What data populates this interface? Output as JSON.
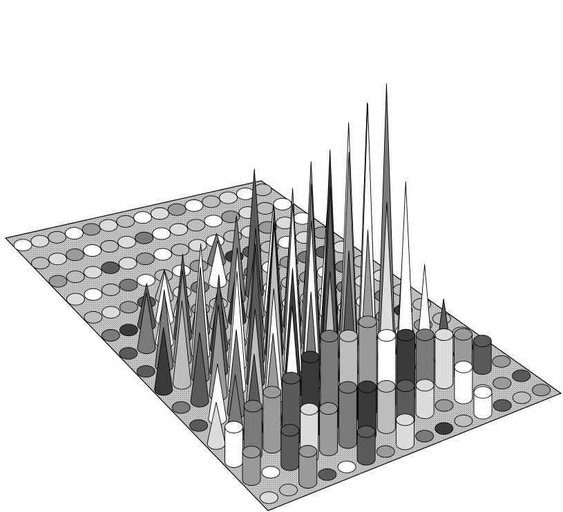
{
  "chart_data": {
    "type": "3d-glyph-grid",
    "title": "",
    "xlabel": "",
    "ylabel": "",
    "zlabel": "",
    "grid_size": [
      15,
      15
    ],
    "glyph_shapes": [
      "cone",
      "cylinder",
      "disc"
    ],
    "shade_levels": [
      "#ffffff",
      "#dcdcdc",
      "#bdbdbd",
      "#9a9a9a",
      "#7a7a7a",
      "#5a5a5a",
      "#3a3a3a"
    ],
    "rows": [
      {
        "c": [
          0,
          1,
          2,
          0,
          3,
          1,
          2,
          0,
          1,
          3,
          0,
          2,
          1,
          0,
          2
        ],
        "h": [
          0,
          0,
          0,
          0,
          0,
          0,
          0,
          0,
          0,
          0,
          0,
          0,
          0,
          0,
          0
        ],
        "s": [
          0,
          0,
          0,
          0,
          0,
          0,
          0,
          0,
          0,
          0,
          0,
          0,
          0,
          0,
          0
        ]
      },
      {
        "c": [
          2,
          1,
          3,
          0,
          2,
          1,
          4,
          0,
          1,
          2,
          0,
          3,
          1,
          2,
          0
        ],
        "h": [
          0,
          0,
          0,
          0,
          0,
          0,
          0,
          0,
          0,
          0,
          0,
          0,
          0,
          0,
          0
        ],
        "s": [
          0,
          0,
          0,
          0,
          0,
          0,
          0,
          0,
          0,
          0,
          0,
          0,
          0,
          0,
          0
        ]
      },
      {
        "c": [
          3,
          2,
          1,
          5,
          1,
          3,
          0,
          2,
          1,
          0,
          2,
          1,
          3,
          1,
          0
        ],
        "h": [
          0,
          0,
          0,
          0,
          0,
          0,
          0,
          0,
          0,
          0,
          0,
          0,
          0,
          0,
          0
        ],
        "s": [
          0,
          0,
          0,
          0,
          0,
          0,
          0,
          0,
          0,
          0,
          0,
          0,
          0,
          0,
          0
        ]
      },
      {
        "c": [
          1,
          0,
          2,
          4,
          0,
          2,
          0,
          3,
          4,
          6,
          5,
          2,
          0,
          1,
          3
        ],
        "h": [
          0,
          0,
          0,
          0,
          0,
          0,
          0,
          0,
          40,
          0,
          0,
          0,
          0,
          0,
          0
        ],
        "s": [
          0,
          0,
          0,
          0,
          0,
          0,
          0,
          0,
          1,
          0,
          0,
          0,
          0,
          0,
          0
        ]
      },
      {
        "c": [
          2,
          1,
          3,
          5,
          2,
          1,
          4,
          0,
          2,
          4,
          0,
          3,
          4,
          5,
          1
        ],
        "h": [
          0,
          0,
          0,
          0,
          40,
          0,
          0,
          60,
          0,
          0,
          0,
          0,
          0,
          0,
          0
        ],
        "s": [
          0,
          0,
          0,
          0,
          1,
          0,
          0,
          1,
          0,
          0,
          0,
          0,
          0,
          0,
          0
        ]
      },
      {
        "c": [
          4,
          6,
          5,
          0,
          1,
          3,
          2,
          4,
          5,
          0,
          2,
          3,
          0,
          4,
          2
        ],
        "h": [
          0,
          0,
          60,
          70,
          50,
          0,
          0,
          120,
          180,
          0,
          0,
          0,
          0,
          0,
          0
        ],
        "s": [
          0,
          0,
          1,
          1,
          1,
          0,
          0,
          1,
          1,
          0,
          0,
          0,
          0,
          0,
          0
        ]
      },
      {
        "c": [
          5,
          4,
          0,
          5,
          4,
          3,
          6,
          3,
          0,
          0,
          1,
          0,
          4,
          1,
          1
        ],
        "h": [
          0,
          80,
          70,
          120,
          80,
          60,
          80,
          100,
          150,
          0,
          0,
          0,
          0,
          0,
          0
        ],
        "s": [
          0,
          1,
          1,
          1,
          1,
          1,
          1,
          1,
          1,
          0,
          0,
          0,
          0,
          0,
          0
        ]
      },
      {
        "c": [
          5,
          4,
          3,
          0,
          5,
          3,
          0,
          4,
          5,
          2,
          0,
          1,
          0,
          4,
          2
        ],
        "h": [
          0,
          110,
          130,
          160,
          90,
          0,
          110,
          160,
          180,
          170,
          180,
          0,
          0,
          0,
          0
        ],
        "s": [
          0,
          1,
          1,
          1,
          1,
          0,
          1,
          1,
          1,
          1,
          1,
          0,
          0,
          0,
          0
        ]
      },
      {
        "c": [
          6,
          2,
          4,
          5,
          0,
          4,
          6,
          2,
          3,
          4,
          5,
          0,
          3,
          6,
          2
        ],
        "h": [
          90,
          120,
          160,
          140,
          170,
          190,
          210,
          230,
          260,
          200,
          190,
          0,
          0,
          0,
          0
        ],
        "s": [
          1,
          1,
          1,
          1,
          1,
          1,
          1,
          1,
          1,
          1,
          1,
          0,
          0,
          0,
          0
        ]
      },
      {
        "c": [
          4,
          5,
          3,
          0,
          5,
          2,
          0,
          4,
          6,
          0,
          2,
          1,
          0,
          3,
          2
        ],
        "h": [
          0,
          100,
          130,
          170,
          200,
          220,
          240,
          260,
          300,
          330,
          350,
          0,
          0,
          0,
          0
        ],
        "s": [
          0,
          1,
          1,
          1,
          1,
          1,
          1,
          1,
          1,
          1,
          1,
          0,
          0,
          0,
          0
        ]
      },
      {
        "c": [
          5,
          0,
          4,
          2,
          0,
          6,
          0,
          5,
          3,
          0,
          4,
          1,
          3,
          0,
          2
        ],
        "h": [
          0,
          80,
          120,
          140,
          160,
          180,
          240,
          280,
          320,
          380,
          400,
          200,
          0,
          0,
          0
        ],
        "s": [
          0,
          1,
          1,
          1,
          1,
          1,
          1,
          1,
          1,
          1,
          1,
          1,
          0,
          0,
          0
        ]
      },
      {
        "c": [
          1,
          4,
          5,
          3,
          0,
          4,
          2,
          5,
          3,
          1,
          0,
          0,
          5,
          0,
          1
        ],
        "h": [
          60,
          90,
          110,
          130,
          160,
          170,
          190,
          210,
          230,
          260,
          280,
          150,
          90,
          0,
          0
        ],
        "s": [
          1,
          1,
          1,
          1,
          1,
          1,
          1,
          1,
          1,
          1,
          1,
          1,
          1,
          0,
          0
        ]
      },
      {
        "c": [
          0,
          4,
          3,
          5,
          6,
          4,
          2,
          3,
          0,
          6,
          4,
          1,
          3,
          5,
          3
        ],
        "h": [
          50,
          70,
          80,
          90,
          110,
          130,
          120,
          130,
          100,
          90,
          80,
          70,
          60,
          40,
          0
        ],
        "s": [
          2,
          2,
          2,
          2,
          2,
          2,
          2,
          2,
          2,
          2,
          2,
          2,
          2,
          2,
          0
        ]
      },
      {
        "c": [
          3,
          0,
          5,
          1,
          3,
          4,
          6,
          2,
          5,
          1,
          3,
          0,
          1,
          3,
          5
        ],
        "h": [
          40,
          0,
          50,
          70,
          60,
          80,
          70,
          60,
          50,
          40,
          0,
          45,
          0,
          0,
          0
        ],
        "s": [
          2,
          0,
          2,
          2,
          2,
          2,
          2,
          2,
          2,
          2,
          0,
          2,
          0,
          0,
          0
        ]
      },
      {
        "c": [
          1,
          2,
          3,
          5,
          0,
          5,
          3,
          1,
          4,
          6,
          2,
          0,
          5,
          2,
          3
        ],
        "h": [
          0,
          0,
          45,
          0,
          0,
          40,
          0,
          35,
          0,
          0,
          0,
          30,
          0,
          0,
          0
        ],
        "s": [
          0,
          0,
          2,
          0,
          0,
          2,
          0,
          2,
          0,
          0,
          0,
          2,
          0,
          0,
          0
        ]
      }
    ]
  }
}
